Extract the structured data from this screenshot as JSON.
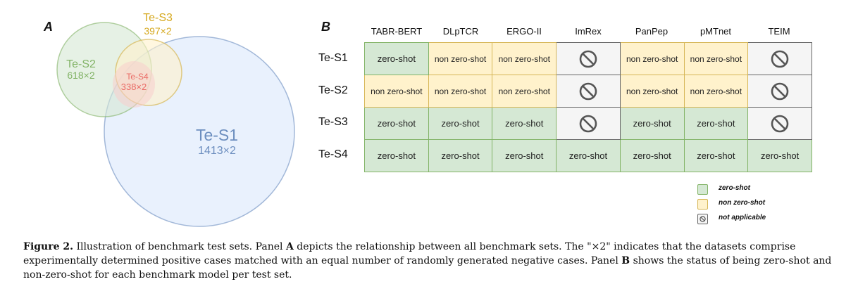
{
  "panel_a": {
    "letter": "A",
    "sets": [
      {
        "name": "Te-S1",
        "count": "1413×2",
        "color": "#6c8ebf",
        "fill": "#dae8fc"
      },
      {
        "name": "Te-S2",
        "count": "618×2",
        "color": "#82b366",
        "fill": "#d5e8d4"
      },
      {
        "name": "Te-S3",
        "count": "397×2",
        "color": "#d6b656",
        "fill": "#fff2cc"
      },
      {
        "name": "Te-S4",
        "count": "338×2",
        "color": "#ea6b66",
        "fill": "#f8cecc"
      }
    ]
  },
  "panel_b": {
    "letter": "B",
    "columns": [
      "TABR-BERT",
      "DLpTCR",
      "ERGO-II",
      "ImRex",
      "PanPep",
      "pMTnet",
      "TEIM"
    ],
    "rows": [
      {
        "label": "Te-S1",
        "cells": [
          "zero-shot",
          "non zero-shot",
          "non zero-shot",
          "na",
          "non zero-shot",
          "non zero-shot",
          "na"
        ]
      },
      {
        "label": "Te-S2",
        "cells": [
          "non zero-shot",
          "non zero-shot",
          "non zero-shot",
          "na",
          "non zero-shot",
          "non zero-shot",
          "na"
        ]
      },
      {
        "label": "Te-S3",
        "cells": [
          "zero-shot",
          "zero-shot",
          "zero-shot",
          "na",
          "zero-shot",
          "zero-shot",
          "na"
        ]
      },
      {
        "label": "Te-S4",
        "cells": [
          "zero-shot",
          "zero-shot",
          "zero-shot",
          "zero-shot",
          "zero-shot",
          "zero-shot",
          "zero-shot"
        ]
      }
    ],
    "legend": [
      {
        "label": "zero-shot",
        "fill": "#d5e8d4",
        "stroke": "#82b366"
      },
      {
        "label": "non zero-shot",
        "fill": "#fff2cc",
        "stroke": "#d6b656"
      },
      {
        "label": "not applicable",
        "fill": "#f5f5f5",
        "stroke": "#666666",
        "icon": "prohibited-icon"
      }
    ]
  },
  "caption": {
    "label": "Figure 2.",
    "text1": " Illustration of benchmark test sets. Panel ",
    "bold1": "A",
    "text2": " depicts the relationship between all benchmark sets. The \"×2\" indicates that the datasets comprise experimentally determined positive cases matched with an equal number of randomly generated negative cases. Panel ",
    "bold2": "B",
    "text3": " shows the status of being zero-shot and non-zero-shot for each benchmark model per test set."
  }
}
